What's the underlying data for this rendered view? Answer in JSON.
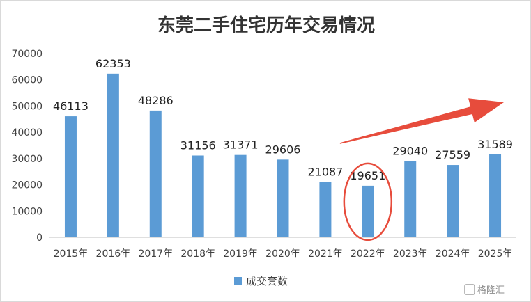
{
  "chart_data": {
    "type": "bar",
    "title": "东莞二手住宅历年交易情况",
    "categories": [
      "2015年",
      "2016年",
      "2017年",
      "2018年",
      "2019年",
      "2020年",
      "2021年",
      "2022年",
      "2023年",
      "2024年",
      "2025年"
    ],
    "series": [
      {
        "name": "成交套数",
        "color": "#5B9BD5",
        "values": [
          46113,
          62353,
          48286,
          31156,
          31371,
          29606,
          21087,
          19651,
          29040,
          27559,
          31589
        ]
      }
    ],
    "yticks": [
      "0",
      "10000",
      "20000",
      "30000",
      "40000",
      "50000",
      "60000",
      "70000"
    ],
    "ylim": [
      0,
      70000
    ],
    "grid": false,
    "legend_position": "bottom",
    "annotations": {
      "circled_category": "2022年",
      "arrow_color": "#E74C3C"
    }
  },
  "watermark": {
    "text": "格隆汇"
  }
}
